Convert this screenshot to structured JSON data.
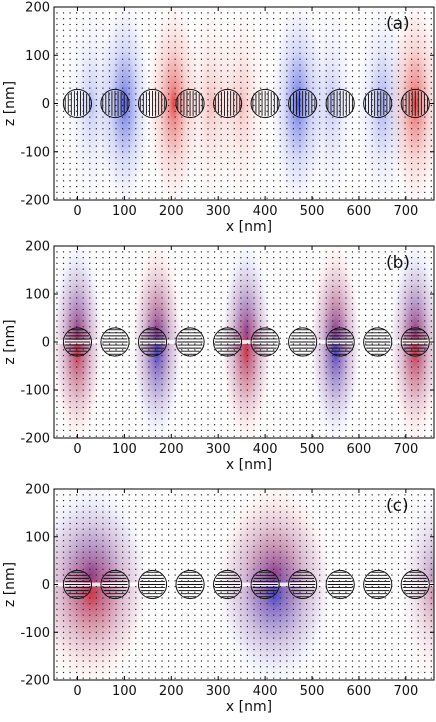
{
  "chart_data": [
    {
      "type": "heatmap",
      "panel_label": "(a)",
      "xlabel": "x [nm]",
      "ylabel": "z [nm]",
      "xlim": [
        -50,
        760
      ],
      "ylim": [
        -200,
        200
      ],
      "x_ticks": [
        "0",
        "100",
        "200",
        "300",
        "400",
        "500",
        "600",
        "700"
      ],
      "y_ticks": [
        "200",
        "100",
        "0",
        "-100",
        "-200"
      ],
      "particle_centers_x": [
        0,
        80,
        160,
        240,
        320,
        400,
        480,
        560,
        640,
        720
      ],
      "field_lobes": [
        {
          "x": 30,
          "z": 0,
          "sign": -1,
          "amplitude": 0.35
        },
        {
          "x": 100,
          "z": 0,
          "sign": -1,
          "amplitude": 0.9
        },
        {
          "x": 205,
          "z": 0,
          "sign": 1,
          "amplitude": 0.9
        },
        {
          "x": 285,
          "z": 0,
          "sign": 1,
          "amplitude": 0.35
        },
        {
          "x": 350,
          "z": 0,
          "sign": 1,
          "amplitude": 0.35
        },
        {
          "x": 470,
          "z": 0,
          "sign": -1,
          "amplitude": 0.9
        },
        {
          "x": 540,
          "z": 0,
          "sign": -1,
          "amplitude": 0.35
        },
        {
          "x": 650,
          "z": 0,
          "sign": -1,
          "amplitude": 0.5
        },
        {
          "x": 720,
          "z": 0,
          "sign": 1,
          "amplitude": 0.9
        }
      ],
      "colormap": {
        "negative": "#2a3ad8",
        "positive": "#e02424",
        "zero": "#ffffff"
      }
    },
    {
      "type": "heatmap",
      "panel_label": "(b)",
      "xlabel": "x [nm]",
      "ylabel": "z [nm]",
      "xlim": [
        -50,
        760
      ],
      "ylim": [
        -200,
        200
      ],
      "x_ticks": [
        "0",
        "100",
        "200",
        "300",
        "400",
        "500",
        "600",
        "700"
      ],
      "y_ticks": [
        "200",
        "100",
        "0",
        "-100",
        "-200"
      ],
      "particle_centers_x": [
        0,
        80,
        160,
        240,
        320,
        400,
        480,
        560,
        640,
        720
      ],
      "field_lobes": [
        {
          "x": 0,
          "z": 20,
          "sign": -1,
          "amplitude": 0.9
        },
        {
          "x": 0,
          "z": -20,
          "sign": 1,
          "amplitude": 0.9
        },
        {
          "x": 170,
          "z": 20,
          "sign": 1,
          "amplitude": 0.9
        },
        {
          "x": 170,
          "z": -20,
          "sign": -1,
          "amplitude": 0.9
        },
        {
          "x": 360,
          "z": 20,
          "sign": -1,
          "amplitude": 0.9
        },
        {
          "x": 360,
          "z": -20,
          "sign": 1,
          "amplitude": 0.9
        },
        {
          "x": 550,
          "z": 20,
          "sign": 1,
          "amplitude": 0.9
        },
        {
          "x": 550,
          "z": -20,
          "sign": -1,
          "amplitude": 0.9
        },
        {
          "x": 720,
          "z": 20,
          "sign": -1,
          "amplitude": 0.9
        },
        {
          "x": 720,
          "z": -20,
          "sign": 1,
          "amplitude": 0.9
        }
      ],
      "colormap": {
        "negative": "#2a3ad8",
        "positive": "#e02424",
        "zero": "#ffffff"
      }
    },
    {
      "type": "heatmap",
      "panel_label": "(c)",
      "xlabel": "x [nm]",
      "ylabel": "z [nm]",
      "xlim": [
        -50,
        760
      ],
      "ylim": [
        -200,
        200
      ],
      "x_ticks": [
        "0",
        "100",
        "200",
        "300",
        "400",
        "500",
        "600",
        "700"
      ],
      "y_ticks": [
        "200",
        "100",
        "0",
        "-100",
        "-200"
      ],
      "particle_centers_x": [
        0,
        80,
        160,
        240,
        320,
        400,
        480,
        560,
        640,
        720
      ],
      "field_lobes": [
        {
          "x": 30,
          "z": 20,
          "sign": -1,
          "amplitude": 0.9
        },
        {
          "x": 30,
          "z": -20,
          "sign": 1,
          "amplitude": 0.9
        },
        {
          "x": 420,
          "z": 20,
          "sign": 1,
          "amplitude": 0.9
        },
        {
          "x": 420,
          "z": -20,
          "sign": -1,
          "amplitude": 0.9
        },
        {
          "x": 760,
          "z": 20,
          "sign": -1,
          "amplitude": 0.4
        },
        {
          "x": 760,
          "z": -20,
          "sign": 1,
          "amplitude": 0.4
        }
      ],
      "colormap": {
        "negative": "#2a3ad8",
        "positive": "#e02424",
        "zero": "#ffffff"
      }
    }
  ]
}
